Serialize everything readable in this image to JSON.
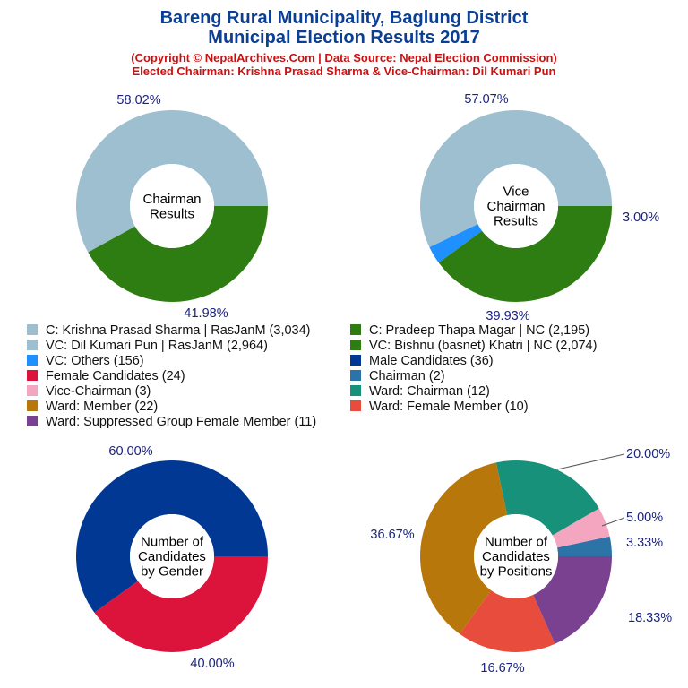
{
  "header": {
    "title_line1": "Bareng Rural Municipality, Baglung District",
    "title_line2": "Municipal Election Results 2017",
    "subtitle_line1": "(Copyright © NepalArchives.Com | Data Source: Nepal Election Commission)",
    "subtitle_line2": "Elected Chairman: Krishna Prasad Sharma & Vice-Chairman: Dil Kumari Pun"
  },
  "legend": [
    {
      "label": "C: Krishna Prasad Sharma | RasJanM (3,034)",
      "color": "#9dbfcf"
    },
    {
      "label": "C: Pradeep Thapa Magar | NC (2,195)",
      "color": "#2e7d12"
    },
    {
      "label": "VC: Dil Kumari Pun | RasJanM (2,964)",
      "color": "#9dbfcf"
    },
    {
      "label": "VC: Bishnu (basnet) Khatri | NC (2,074)",
      "color": "#2e7d12"
    },
    {
      "label": "VC: Others (156)",
      "color": "#1e90ff"
    },
    {
      "label": "Male Candidates (36)",
      "color": "#003893"
    },
    {
      "label": "Female Candidates (24)",
      "color": "#dc143c"
    },
    {
      "label": "Chairman (2)",
      "color": "#2c73a8"
    },
    {
      "label": "Vice-Chairman (3)",
      "color": "#f4a6c0"
    },
    {
      "label": "Ward: Chairman (12)",
      "color": "#17917a"
    },
    {
      "label": "Ward: Member (22)",
      "color": "#b8770b"
    },
    {
      "label": "Ward: Female Member (10)",
      "color": "#e84c3d"
    },
    {
      "label": "Ward: Suppressed Group Female Member (11)",
      "color": "#7a4190"
    }
  ],
  "chart_data": [
    {
      "type": "pie",
      "center_label": [
        "Chairman",
        "Results"
      ],
      "slices": [
        {
          "name": "C: Krishna Prasad Sharma | RasJanM",
          "value": 3034,
          "label": "58.02%",
          "color": "#9dbfcf"
        },
        {
          "name": "C: Pradeep Thapa Magar | NC",
          "value": 2195,
          "label": "41.98%",
          "color": "#2e7d12"
        }
      ]
    },
    {
      "type": "pie",
      "center_label": [
        "Vice",
        "Chairman",
        "Results"
      ],
      "slices": [
        {
          "name": "VC: Dil Kumari Pun | RasJanM",
          "value": 2964,
          "label": "57.07%",
          "color": "#9dbfcf"
        },
        {
          "name": "VC: Others",
          "value": 156,
          "label": "3.00%",
          "color": "#1e90ff"
        },
        {
          "name": "VC: Bishnu (basnet) Khatri | NC",
          "value": 2074,
          "label": "39.93%",
          "color": "#2e7d12"
        }
      ]
    },
    {
      "type": "pie",
      "center_label": [
        "Number of",
        "Candidates",
        "by Gender"
      ],
      "slices": [
        {
          "name": "Male Candidates",
          "value": 36,
          "label": "60.00%",
          "color": "#003893"
        },
        {
          "name": "Female Candidates",
          "value": 24,
          "label": "40.00%",
          "color": "#dc143c"
        }
      ]
    },
    {
      "type": "pie",
      "center_label": [
        "Number of",
        "Candidates",
        "by Positions"
      ],
      "slices": [
        {
          "name": "Chairman",
          "value": 2,
          "label": "3.33%",
          "color": "#2c73a8"
        },
        {
          "name": "Vice-Chairman",
          "value": 3,
          "label": "5.00%",
          "color": "#f4a6c0"
        },
        {
          "name": "Ward: Chairman",
          "value": 12,
          "label": "20.00%",
          "color": "#17917a"
        },
        {
          "name": "Ward: Member",
          "value": 22,
          "label": "36.67%",
          "color": "#b8770b"
        },
        {
          "name": "Ward: Female Member",
          "value": 10,
          "label": "16.67%",
          "color": "#e84c3d"
        },
        {
          "name": "Ward: Suppressed Group Female Member",
          "value": 11,
          "label": "18.33%",
          "color": "#7a4190"
        }
      ]
    }
  ]
}
